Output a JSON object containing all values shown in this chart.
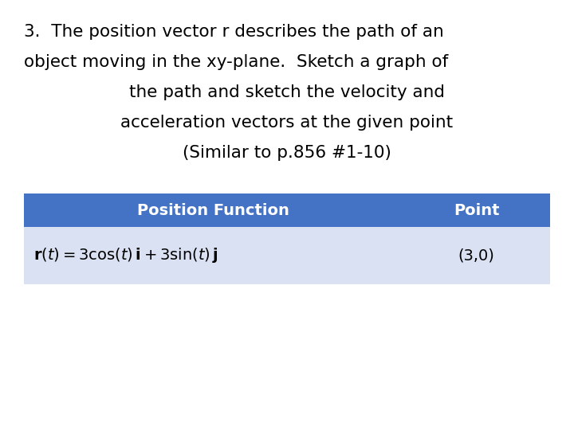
{
  "background_color": "#ffffff",
  "title_line1": "3.  The position vector r describes the path of an",
  "title_line2": "object moving in the xy-plane.  Sketch a graph of",
  "title_line3": "the path and sketch the velocity and",
  "title_line4": "acceleration vectors at the given point",
  "title_line5": "(Similar to p.856 #1-10)",
  "title_fontsize": 15.5,
  "title_color": "#000000",
  "table_header_bg": "#4472C4",
  "table_row_bg": "#D9E1F2",
  "table_header_text_color": "#ffffff",
  "table_row_text_color": "#000000",
  "header_col1": "Position Function",
  "header_col2": "Point",
  "row_col1_formula": "$\\mathbf{r}(t) = 3\\cos(t)\\,\\mathbf{i} + 3\\sin(t)\\,\\mathbf{j}$",
  "row_col2": "(3,0)",
  "fig_width": 7.2,
  "fig_height": 5.4,
  "dpi": 100
}
